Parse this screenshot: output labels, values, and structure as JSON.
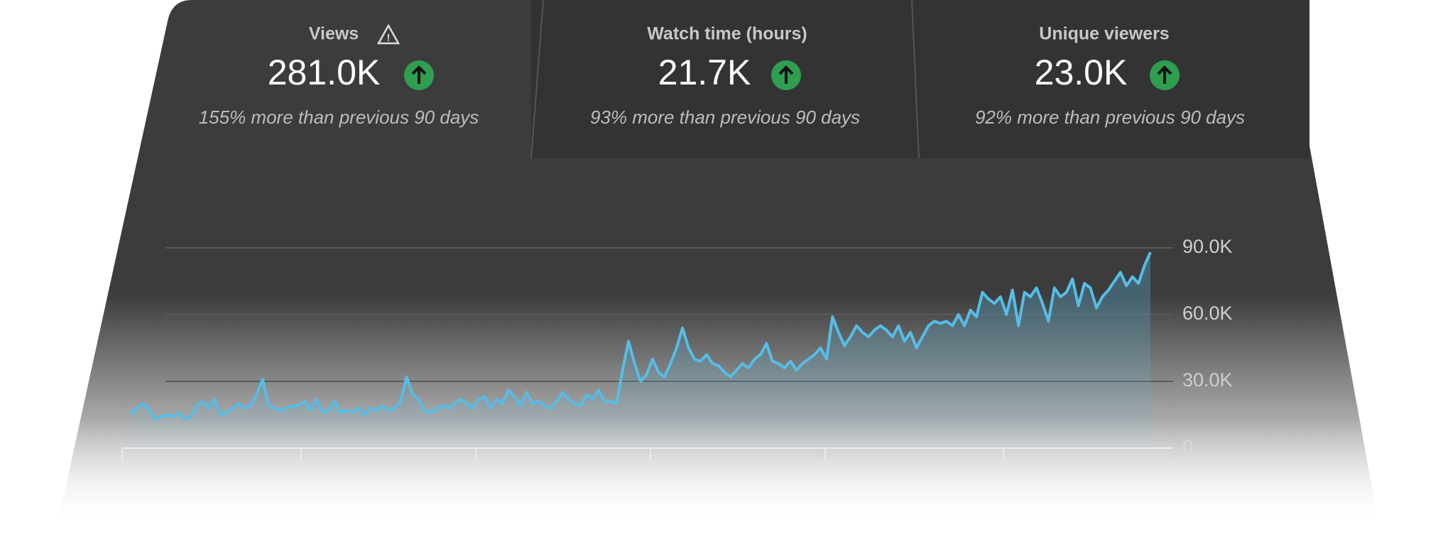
{
  "cards": [
    {
      "label": "Views",
      "value": "281.0K",
      "comparison": "155% more than previous 90 days"
    },
    {
      "label": "Watch time (hours)",
      "value": "21.7K",
      "comparison": "93% more than previous 90 days"
    },
    {
      "label": "Unique viewers",
      "value": "23.0K",
      "comparison": "92% more than previous 90 days"
    }
  ],
  "chart_data": {
    "type": "line",
    "series": [
      {
        "name": "Views",
        "color": "#56bde6",
        "values": [
          15000,
          18000,
          20000,
          18000,
          13000,
          14000,
          15000,
          14000,
          16000,
          13000,
          14000,
          19000,
          21000,
          18000,
          22000,
          15000,
          16000,
          18000,
          20000,
          18000,
          19000,
          24000,
          31000,
          19000,
          18000,
          17000,
          18000,
          19000,
          19000,
          21000,
          17000,
          22000,
          16000,
          17000,
          21000,
          16000,
          17000,
          16000,
          18000,
          15000,
          18000,
          17000,
          19000,
          17000,
          18000,
          21000,
          32000,
          24000,
          22000,
          17000,
          16000,
          18000,
          19000,
          18000,
          20000,
          22000,
          20000,
          18000,
          22000,
          23000,
          18000,
          22000,
          20000,
          26000,
          23000,
          19000,
          25000,
          20000,
          21000,
          19000,
          18000,
          21000,
          25000,
          22000,
          20000,
          19000,
          24000,
          22000,
          26000,
          21000,
          21000,
          20000,
          35000,
          48000,
          38000,
          30000,
          33000,
          40000,
          34000,
          32000,
          38000,
          45000,
          54000,
          45000,
          40000,
          39000,
          42000,
          38000,
          37000,
          34000,
          32000,
          35000,
          38000,
          36000,
          40000,
          42000,
          47000,
          39000,
          38000,
          36000,
          39000,
          35000,
          38000,
          40000,
          42000,
          45000,
          40000,
          59000,
          52000,
          46000,
          50000,
          55000,
          52000,
          50000,
          53000,
          55000,
          53000,
          50000,
          55000,
          48000,
          52000,
          45000,
          50000,
          55000,
          57000,
          56000,
          57000,
          55000,
          60000,
          55000,
          62000,
          59000,
          70000,
          67000,
          65000,
          68000,
          60000,
          71000,
          55000,
          70000,
          68000,
          72000,
          65000,
          57000,
          72000,
          68000,
          70000,
          76000,
          64000,
          74000,
          72000,
          63000,
          68000,
          71000,
          75000,
          79000,
          73000,
          77000,
          74000,
          82000,
          88000
        ]
      }
    ],
    "ylim": [
      0,
      90000
    ],
    "yticks": [
      0,
      {
        "value": 30000,
        "label": "30.0K"
      },
      {
        "value": 60000,
        "label": "60.0K"
      },
      {
        "value": 90000,
        "label": "90.0K"
      }
    ],
    "grid": true
  }
}
